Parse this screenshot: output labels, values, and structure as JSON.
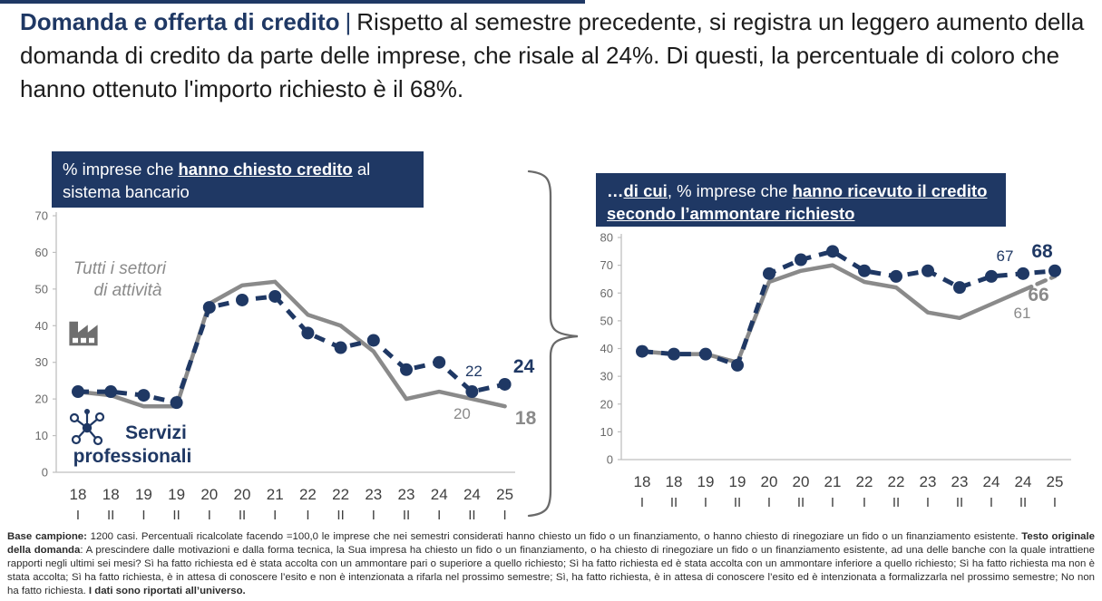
{
  "colors": {
    "navy": "#1F3864",
    "gray_line": "#8A8A8A",
    "icon_gray": "#6E6E6E",
    "axis_line": "#BFBFBF",
    "y_tick_text": "#6A6A6A",
    "x_tick_text": "#3F3F3F"
  },
  "title": {
    "topic": "Domanda e offerta di credito",
    "separator": "|",
    "description": "Rispetto al semestre precedente, si registra un leggero aumento della domanda di credito da parte delle imprese, che risale al 24%. Di questi, la percentuale di coloro che hanno ottenuto l'importo richiesto è il 68%."
  },
  "left_chart_header": {
    "segments": [
      {
        "t": "% imprese che ",
        "b": false,
        "u": false
      },
      {
        "t": "hanno chiesto credito",
        "b": true,
        "u": true
      },
      {
        "t": " al sistema bancario",
        "b": false,
        "u": false
      }
    ]
  },
  "right_chart_header": {
    "segments": [
      {
        "t": "…",
        "b": true,
        "u": false
      },
      {
        "t": "di cui",
        "b": true,
        "u": true
      },
      {
        "t": ", % imprese che ",
        "b": false,
        "u": false
      },
      {
        "t": "hanno ricevuto il credito secondo l’ammontare richiesto",
        "b": true,
        "u": true
      }
    ]
  },
  "chart_data": [
    {
      "id": "left",
      "type": "line",
      "title": "% imprese che hanno chiesto credito al sistema bancario",
      "categories": [
        "18 I",
        "18 II",
        "19 I",
        "19 II",
        "20 I",
        "20 II",
        "21 I",
        "22 I",
        "22 II",
        "23 I",
        "23 II",
        "24 I",
        "24 II",
        "25 I"
      ],
      "ylim": [
        0,
        70
      ],
      "ytick_step": 10,
      "grid": false,
      "legend_position": "in-plot",
      "series": [
        {
          "name": "Tutti i settori di attività",
          "color": "#8A8A8A",
          "style": "solid",
          "values": [
            22,
            21,
            18,
            18,
            46,
            51,
            52,
            43,
            40,
            33,
            20,
            22,
            20,
            18
          ]
        },
        {
          "name": "Servizi professionali",
          "color": "#1F3864",
          "style": "dashed-markers",
          "values": [
            22,
            22,
            21,
            19,
            45,
            47,
            48,
            38,
            34,
            36,
            28,
            30,
            22,
            24
          ]
        }
      ],
      "legend_lines": [
        [
          "Tutti i settori",
          "di attività"
        ],
        [
          "Servizi",
          "professionali"
        ]
      ],
      "annotations": [
        {
          "text": "22",
          "series": 1,
          "index": 12,
          "value": 22,
          "bold": false
        },
        {
          "text": "24",
          "series": 1,
          "index": 13,
          "value": 24,
          "bold": true
        },
        {
          "text": "20",
          "series": 0,
          "index": 12,
          "value": 20,
          "bold": false
        },
        {
          "text": "18",
          "series": 0,
          "index": 13,
          "value": 18,
          "bold": true
        }
      ]
    },
    {
      "id": "right",
      "type": "line",
      "title": "…di cui, % imprese che hanno ricevuto il credito secondo l’ammontare richiesto",
      "categories": [
        "18 I",
        "18 II",
        "19 I",
        "19 II",
        "20 I",
        "20 II",
        "21 I",
        "22 I",
        "22 II",
        "23 I",
        "23 II",
        "24 I",
        "24 II",
        "25 I"
      ],
      "ylim": [
        0,
        80
      ],
      "ytick_step": 10,
      "grid": false,
      "series": [
        {
          "name": "Tutti i settori di attività",
          "color": "#8A8A8A",
          "style": "solid-lastdash",
          "values": [
            39,
            38,
            38,
            35,
            64,
            68,
            70,
            64,
            62,
            53,
            51,
            56,
            61,
            66
          ]
        },
        {
          "name": "Servizi professionali",
          "color": "#1F3864",
          "style": "dashed-markers",
          "values": [
            39,
            38,
            38,
            34,
            67,
            72,
            75,
            68,
            66,
            68,
            62,
            66,
            67,
            68
          ]
        }
      ],
      "annotations": [
        {
          "text": "67",
          "series": 1,
          "index": 12,
          "value": 67,
          "bold": false
        },
        {
          "text": "68",
          "series": 1,
          "index": 13,
          "value": 68,
          "bold": true
        },
        {
          "text": "61",
          "series": 0,
          "index": 12,
          "value": 61,
          "bold": false
        },
        {
          "text": "66",
          "series": 0,
          "index": 13,
          "value": 66,
          "bold": true
        }
      ]
    }
  ],
  "footnote": {
    "segments": [
      {
        "t": "Base campione: ",
        "b": true
      },
      {
        "t": "1200 casi. Percentuali ricalcolate facendo =100,0 le imprese che nei semestri considerati hanno chiesto un fido o un finanziamento, o hanno chiesto di rinegoziare un fido o un finanziamento esistente. ",
        "b": false
      },
      {
        "t": "Testo originale della domanda",
        "b": true
      },
      {
        "t": ": A prescindere dalle motivazioni e dalla forma tecnica, la Sua impresa ha chiesto un fido o un finanziamento, o ha chiesto di rinegoziare un fido o un finanziamento esistente, ad una delle banche con la quale intrattiene rapporti negli ultimi sei mesi?  Sì ha fatto richiesta ed è stata accolta con un ammontare pari o superiore a quello richiesto; Sì ha fatto richiesta ed è stata accolta con un ammontare inferiore a quello richiesto; Sì ha fatto richiesta ma non è stata accolta; Sì ha fatto richiesta, è in attesa di conoscere l’esito e non è intenzionata a rifarla nel prossimo semestre; Sì, ha fatto richiesta, è in attesa di conoscere l’esito ed è intenzionata a formalizzarla nel prossimo semestre; No non ha fatto richiesta. ",
        "b": false
      },
      {
        "t": "I dati sono riportati all’universo.",
        "b": true
      }
    ]
  }
}
